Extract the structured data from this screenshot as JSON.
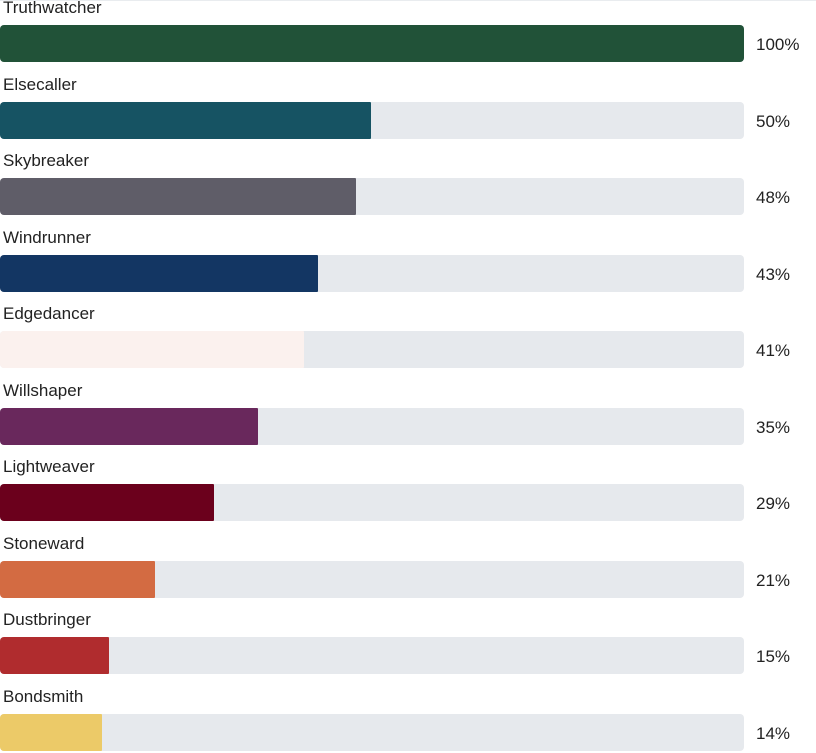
{
  "results": [
    {
      "label": "Truthwatcher",
      "percent_text": "100%",
      "fraction": 1.0,
      "color": "#215238"
    },
    {
      "label": "Elsecaller",
      "percent_text": "50%",
      "fraction": 0.498,
      "color": "#165363"
    },
    {
      "label": "Skybreaker",
      "percent_text": "48%",
      "fraction": 0.478,
      "color": "#5f5d68"
    },
    {
      "label": "Windrunner",
      "percent_text": "43%",
      "fraction": 0.427,
      "color": "#133663"
    },
    {
      "label": "Edgedancer",
      "percent_text": "41%",
      "fraction": 0.408,
      "color": "#fbf1ee"
    },
    {
      "label": "Willshaper",
      "percent_text": "35%",
      "fraction": 0.347,
      "color": "#69285c"
    },
    {
      "label": "Lightweaver",
      "percent_text": "29%",
      "fraction": 0.288,
      "color": "#6b001c"
    },
    {
      "label": "Stoneward",
      "percent_text": "21%",
      "fraction": 0.208,
      "color": "#d36b42"
    },
    {
      "label": "Dustbringer",
      "percent_text": "15%",
      "fraction": 0.146,
      "color": "#b02c2e"
    },
    {
      "label": "Bondsmith",
      "percent_text": "14%",
      "fraction": 0.137,
      "color": "#ecca68"
    }
  ]
}
